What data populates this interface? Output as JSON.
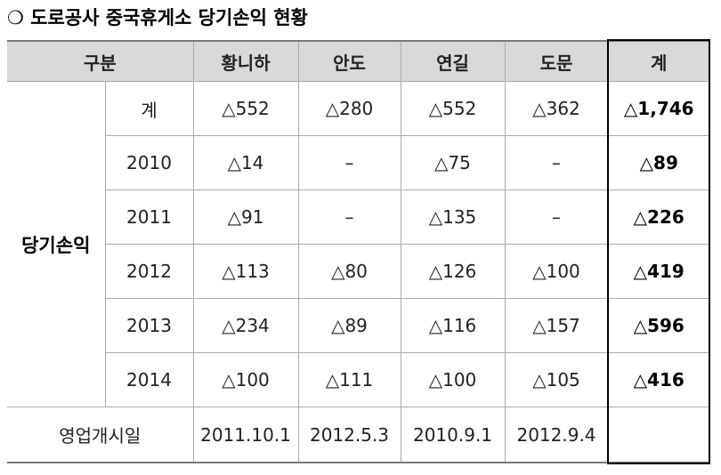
{
  "title": "❍ 도로공사 중국휴게소 당기손익 현황",
  "table": {
    "header": [
      "구분",
      "황니하",
      "안도",
      "연길",
      "도문",
      "계"
    ],
    "group_label": "당기손익",
    "rows": [
      [
        "계",
        "△552",
        "△280",
        "△552",
        "△362",
        "△1,746"
      ],
      [
        "2010",
        "△14",
        "–",
        "△75",
        "–",
        "△89"
      ],
      [
        "2011",
        "△91",
        "–",
        "△135",
        "–",
        "△226"
      ],
      [
        "2012",
        "△113",
        "△80",
        "△126",
        "△100",
        "△419"
      ],
      [
        "2013",
        "△234",
        "△89",
        "△116",
        "△157",
        "△596"
      ],
      [
        "2014",
        "△100",
        "△111",
        "△100",
        "△105",
        "△416"
      ]
    ],
    "footer_label": "영업개시일",
    "footer": [
      "2011.10.1",
      "2012.5.3",
      "2010.9.1",
      "2012.9.4"
    ]
  }
}
